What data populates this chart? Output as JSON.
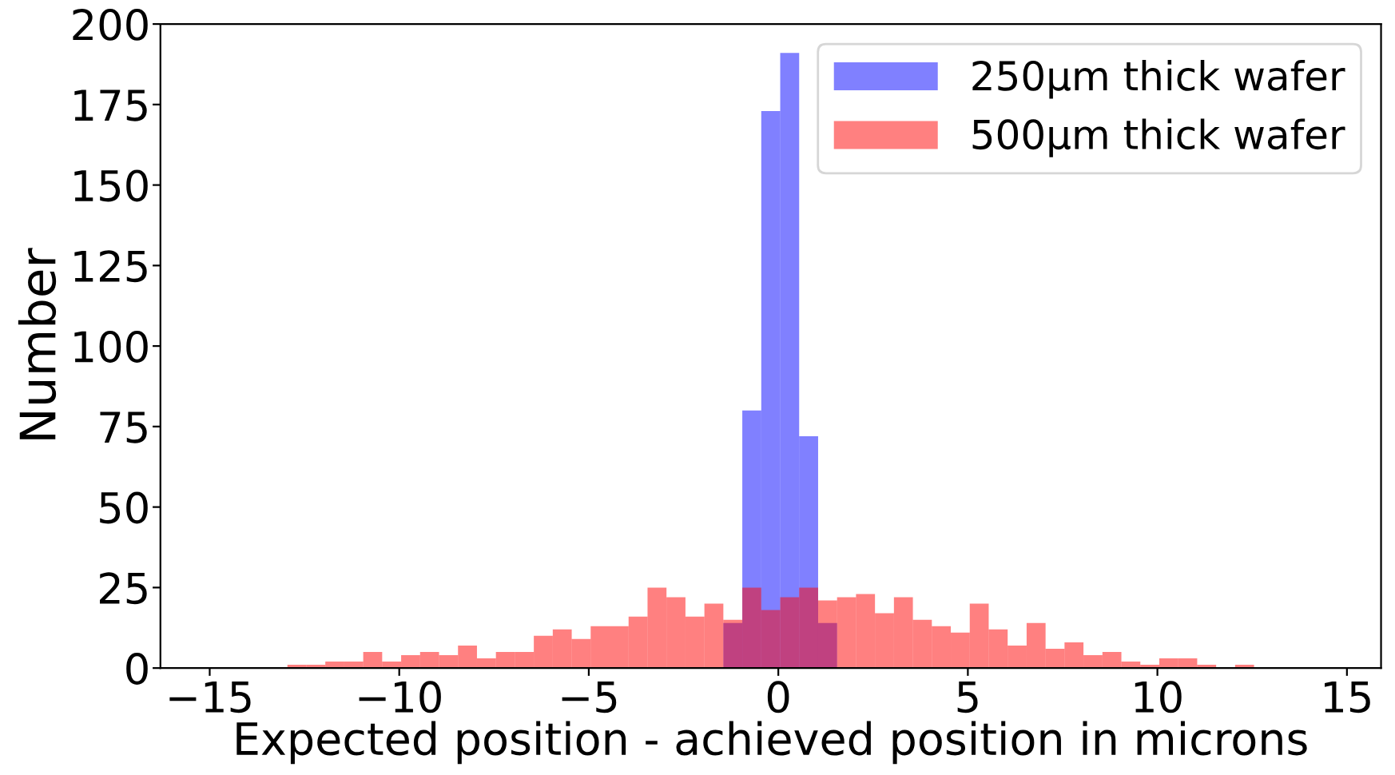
{
  "chart_data": {
    "type": "histogram",
    "xlabel": "Expected position - achieved position in microns",
    "ylabel": "Number",
    "series": [
      {
        "name": "250μm thick wafer",
        "color": "#8080ff",
        "values": [
          0,
          0,
          0,
          0,
          0,
          0,
          0,
          0,
          0,
          0,
          0,
          0,
          0,
          0,
          0,
          0,
          0,
          0,
          0,
          0,
          0,
          0,
          0,
          0,
          0,
          0,
          0,
          0,
          14,
          80,
          173,
          191,
          72,
          14,
          0,
          0,
          0,
          0,
          0,
          0,
          0,
          0,
          0,
          0,
          0,
          0,
          0,
          0,
          0,
          0,
          0,
          0,
          0,
          0,
          0,
          0,
          0,
          0,
          0,
          0
        ]
      },
      {
        "name": "500μm thick wafer",
        "color": "#ff8080",
        "values": [
          0,
          0,
          0,
          0,
          0,
          1,
          1,
          2,
          2,
          5,
          2,
          4,
          5,
          4,
          7,
          3,
          5,
          5,
          10,
          12,
          9,
          13,
          13,
          16,
          25,
          22,
          16,
          20,
          15,
          25,
          18,
          22,
          25,
          21,
          22,
          23,
          17,
          22,
          15,
          13,
          11,
          20,
          12,
          7,
          14,
          6,
          8,
          4,
          5,
          2,
          1,
          3,
          3,
          1,
          0,
          1,
          0,
          0,
          0,
          0
        ]
      }
    ],
    "bins": [
      -15.45,
      -14.95,
      -14.45,
      -13.95,
      -13.45,
      -12.95,
      -12.45,
      -11.95,
      -11.45,
      -10.95,
      -10.45,
      -9.95,
      -9.45,
      -8.95,
      -8.45,
      -7.95,
      -7.45,
      -6.95,
      -6.45,
      -5.95,
      -5.45,
      -4.95,
      -4.45,
      -3.95,
      -3.45,
      -2.95,
      -2.45,
      -1.95,
      -1.45,
      -0.95,
      -0.45,
      0.05,
      0.55,
      1.05,
      1.55,
      2.05,
      2.55,
      3.05,
      3.55,
      4.05,
      4.55,
      5.05,
      5.55,
      6.05,
      6.55,
      7.05,
      7.55,
      8.05,
      8.55,
      9.05,
      9.55,
      10.05,
      10.55,
      11.05,
      11.55,
      12.05,
      12.55,
      13.05,
      13.55,
      14.05,
      14.55
    ],
    "xlim": [
      -16.3,
      15.9
    ],
    "ylim": [
      0,
      200
    ],
    "xticks": [
      {
        "value": -15,
        "label": "−15"
      },
      {
        "value": -10,
        "label": "−10"
      },
      {
        "value": -5,
        "label": "−5"
      },
      0,
      5,
      10,
      15
    ],
    "yticks": [
      0,
      25,
      50,
      75,
      100,
      125,
      150,
      175,
      200
    ],
    "grid": false,
    "legend": "top right"
  }
}
